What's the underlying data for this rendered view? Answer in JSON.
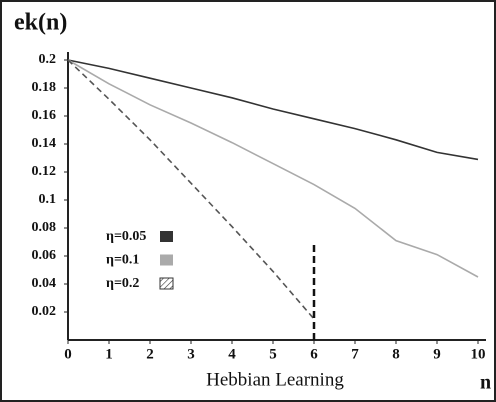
{
  "chart_data": {
    "type": "line",
    "y_label": "ek(n)",
    "x_label": "Hebbian Learning",
    "x_axis_symbol": "n",
    "x": [
      0,
      1,
      2,
      3,
      4,
      5,
      6,
      7,
      8,
      9,
      10
    ],
    "series": [
      {
        "name": "η=0.05",
        "color": "#333333",
        "style": "solid",
        "values": [
          0.2,
          0.194,
          0.187,
          0.18,
          0.173,
          0.165,
          0.158,
          0.151,
          0.143,
          0.134,
          0.129
        ]
      },
      {
        "name": "η=0.1",
        "color": "#aaaaaa",
        "style": "solid",
        "values": [
          0.2,
          0.183,
          0.168,
          0.155,
          0.141,
          0.126,
          0.111,
          0.094,
          0.071,
          0.061,
          0.045
        ]
      },
      {
        "name": "η=0.2",
        "color": "#555555",
        "style": "dashed",
        "values": [
          0.2,
          0.172,
          0.143,
          0.112,
          0.081,
          0.049,
          0.015,
          null,
          null,
          null,
          null
        ]
      }
    ],
    "vertical_line": {
      "x": 6,
      "top": 0.07
    },
    "xlim": [
      0,
      10
    ],
    "xticks": [
      0,
      1,
      2,
      3,
      4,
      5,
      6,
      7,
      8,
      9,
      10
    ],
    "ylim": [
      0,
      0.2
    ],
    "yticks": [
      0.02,
      0.04,
      0.06,
      0.08,
      0.1,
      0.12,
      0.14,
      0.16,
      0.18,
      0.2
    ]
  }
}
